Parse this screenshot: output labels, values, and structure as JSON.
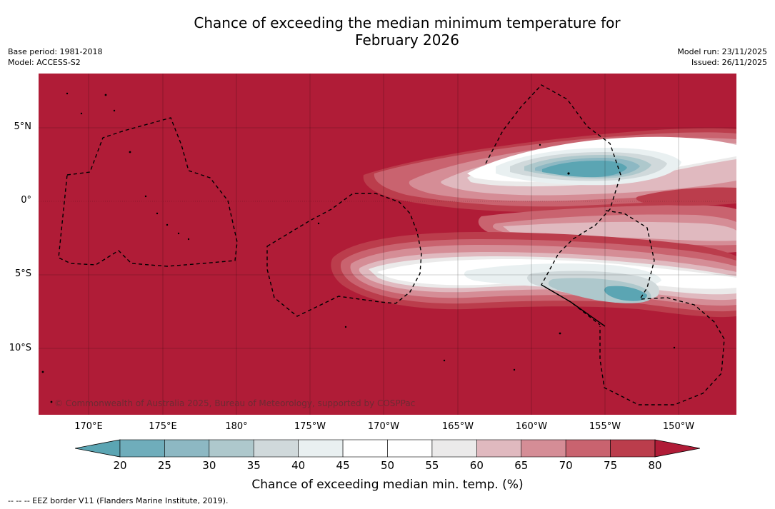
{
  "title_line1": "Chance of exceeding the median minimum temperature for",
  "title_line2": "February 2026",
  "meta_left": {
    "base_period": "Base period: 1981-2018",
    "model": "Model: ACCESS-S2"
  },
  "meta_right": {
    "model_run": "Model run: 23/11/2025",
    "issued": "Issued: 26/11/2025"
  },
  "latitude_labels": [
    "5°N",
    "0°",
    "5°S",
    "10°S"
  ],
  "longitude_labels": [
    "170°E",
    "175°E",
    "180°",
    "175°W",
    "170°W",
    "165°W",
    "160°W",
    "155°W",
    "150°W"
  ],
  "copyright": "© Commonwealth of Australia 2025, Bureau of Meteorology, supported by COSPPac",
  "colorbar": {
    "ticks": [
      "20",
      "25",
      "30",
      "35",
      "40",
      "45",
      "50",
      "55",
      "60",
      "65",
      "70",
      "75",
      "80"
    ],
    "colors": [
      "#5ba5b3",
      "#6fadbb",
      "#8db8c3",
      "#aec8cc",
      "#d0d9db",
      "#e9f0f1",
      "#ffffff",
      "#ffffff",
      "#ebeaea",
      "#e0b9bf",
      "#d58d96",
      "#c9636f",
      "#bb3d4c",
      "#b01c37"
    ],
    "label": "Chance of exceeding median min. temp. (%)"
  },
  "legend_footnote": "--  --  -- EEZ border V11 (Flanders Marine Institute, 2019).",
  "map_colors": {
    "background": "#b01c37",
    "c75": "#bb3d4c",
    "c70": "#c9636f",
    "c65": "#d58d96",
    "c60": "#e0b9bf",
    "c55": "#ebeaea",
    "c50": "#ffffff",
    "c40": "#e9f0f1",
    "c35": "#d0d9db",
    "c30": "#aec8cc",
    "c25": "#8db8c3",
    "c20": "#5ba5b3"
  }
}
